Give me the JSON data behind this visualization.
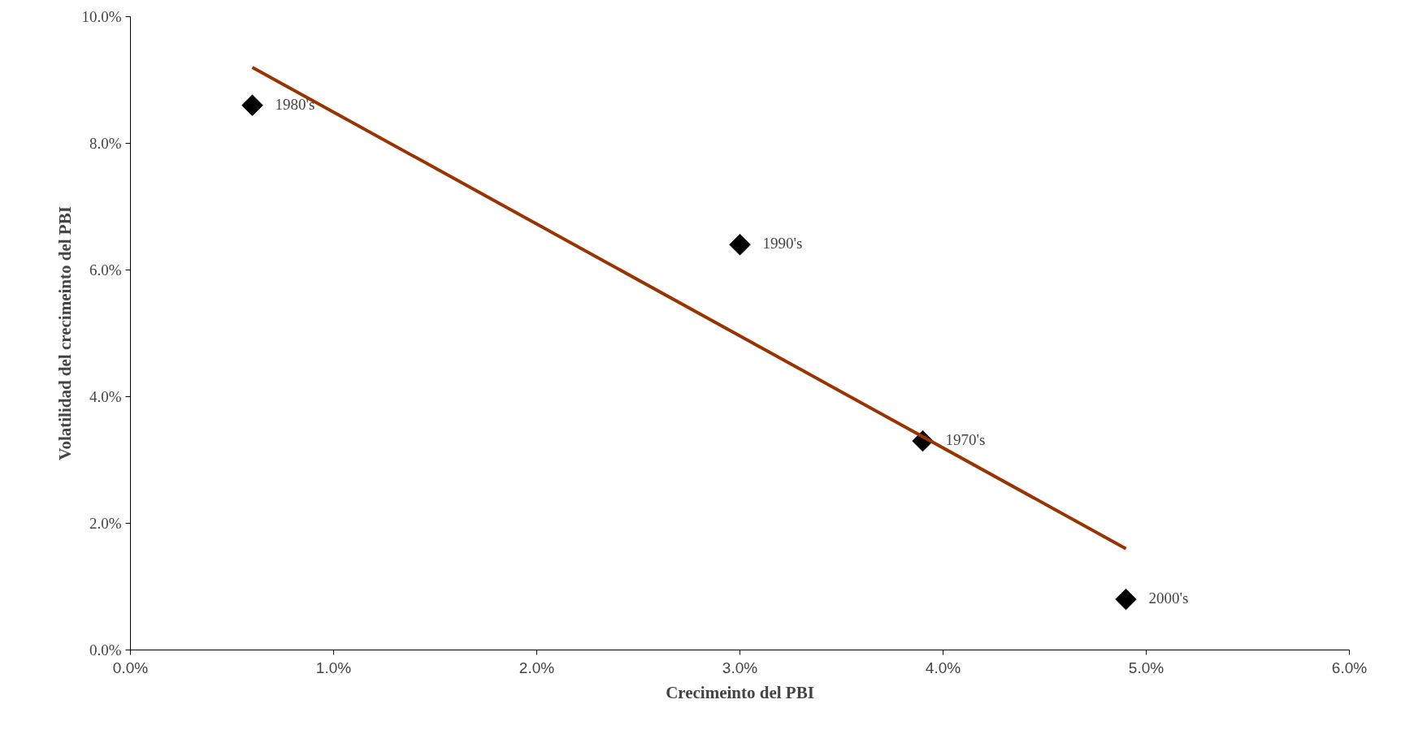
{
  "chart_data": {
    "type": "scatter",
    "xlabel": "Crecimeinto del PBI",
    "ylabel": "Volatilidad del crecimeinto del PBI",
    "series": [
      {
        "color": "#000000",
        "marker": "diamond",
        "x": [
          0.6,
          3.0,
          3.9,
          4.9
        ],
        "values": [
          8.6,
          6.4,
          3.3,
          0.8
        ]
      },
      {
        "type": "line",
        "color": "#993300",
        "x": [
          0.6,
          4.9
        ],
        "values": [
          9.2,
          1.6
        ]
      }
    ],
    "annotations": [
      {
        "text": "1980's",
        "x": 0.6,
        "y": 8.6
      },
      {
        "text": "1990's",
        "x": 3.0,
        "y": 6.4
      },
      {
        "text": "1970's",
        "x": 3.9,
        "y": 3.3
      },
      {
        "text": "2000's",
        "x": 4.9,
        "y": 0.8
      }
    ],
    "xlim": [
      0,
      6
    ],
    "ylim": [
      0,
      10
    ],
    "xticks": [
      {
        "value": 0,
        "label": "0.0%"
      },
      {
        "value": 1,
        "label": "1.0%"
      },
      {
        "value": 2,
        "label": "2.0%"
      },
      {
        "value": 3,
        "label": "3.0%"
      },
      {
        "value": 4,
        "label": "4.0%"
      },
      {
        "value": 5,
        "label": "5.0%"
      },
      {
        "value": 6,
        "label": "6.0%"
      }
    ],
    "yticks": [
      {
        "value": 0,
        "label": "0.0%"
      },
      {
        "value": 2,
        "label": "2.0%"
      },
      {
        "value": 4,
        "label": "4.0%"
      },
      {
        "value": 6,
        "label": "6.0%"
      },
      {
        "value": 8,
        "label": "8.0%"
      },
      {
        "value": 10,
        "label": "10.0%"
      }
    ],
    "grid": false
  }
}
